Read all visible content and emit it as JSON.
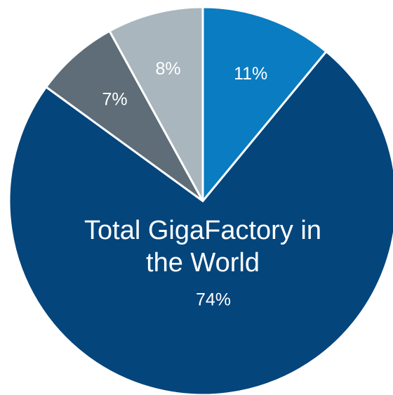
{
  "chart_data": {
    "type": "pie",
    "title": "",
    "start_angle_deg": 0,
    "direction": "clockwise",
    "slices": [
      {
        "label": "",
        "value": 11,
        "value_label": "11%",
        "color": "#0a7cc1",
        "label_color": "#ffffff"
      },
      {
        "label": "Total GigaFactory in the World",
        "label_lines": [
          "Total GigaFactory in",
          "the World"
        ],
        "value": 74,
        "value_label": "74%",
        "color": "#04457c",
        "label_color": "#ffffff"
      },
      {
        "label": "",
        "value": 7,
        "value_label": "7%",
        "color": "#5e6d77",
        "label_color": "#ffffff"
      },
      {
        "label": "",
        "value": 8,
        "value_label": "8%",
        "color": "#a9b6be",
        "label_color": "#ffffff"
      }
    ],
    "legend": "none"
  }
}
